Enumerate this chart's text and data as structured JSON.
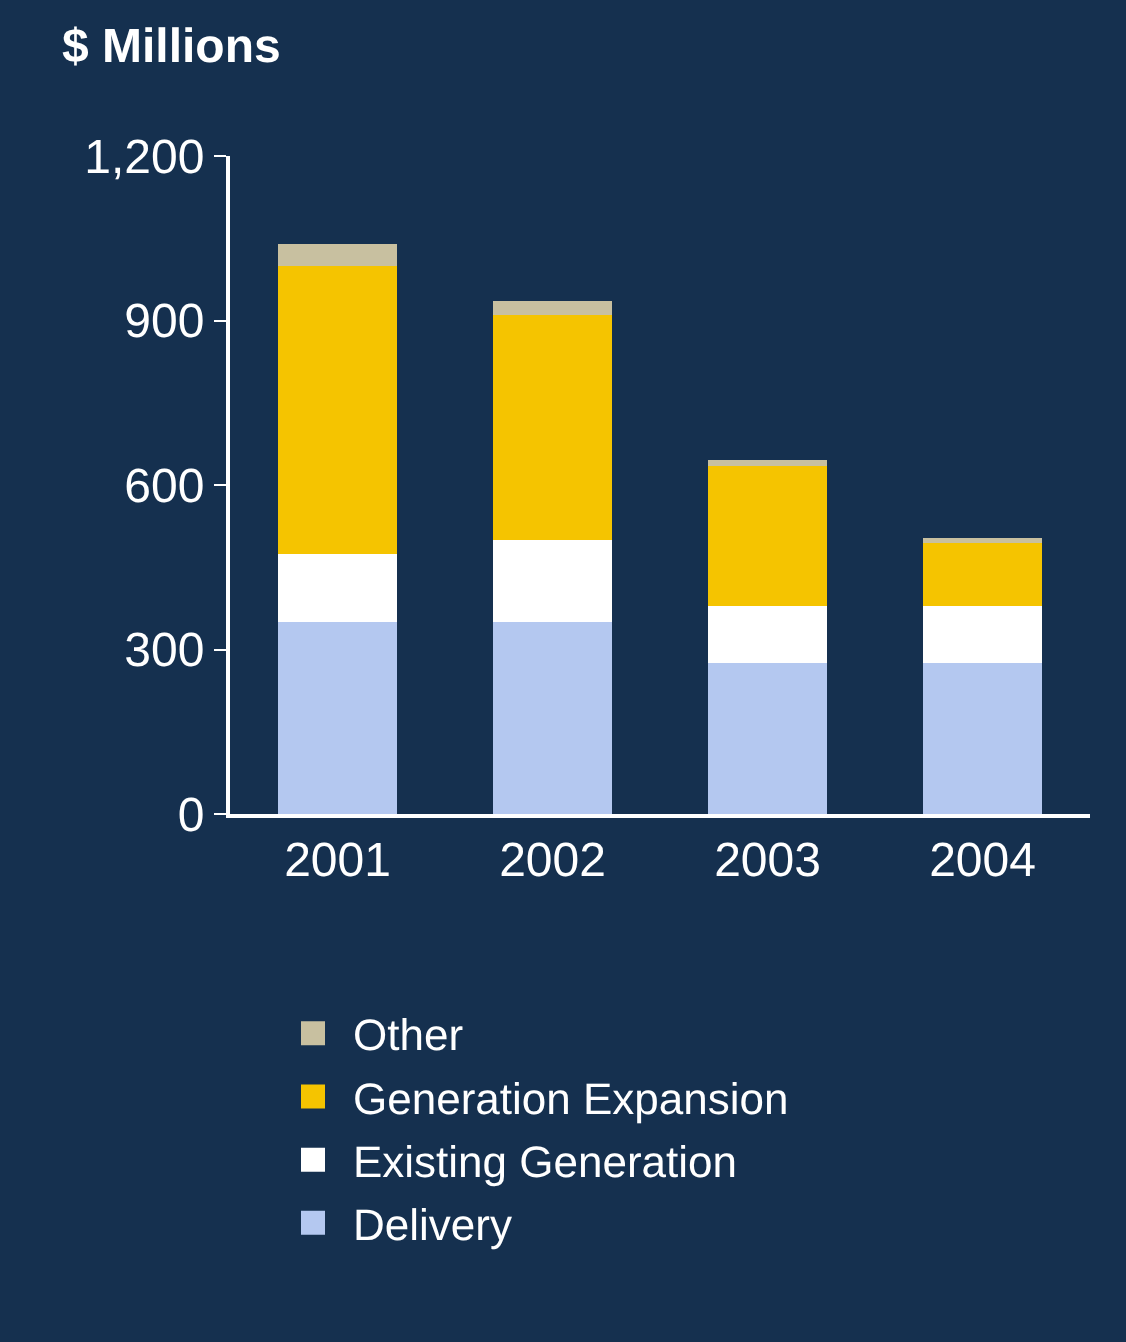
{
  "chart_data": {
    "type": "bar",
    "stacked": true,
    "ylabel": "$ Millions",
    "categories": [
      "2001",
      "2002",
      "2003",
      "2004"
    ],
    "series": [
      {
        "name": "Delivery",
        "color": "#b4c8f0",
        "values": [
          350,
          350,
          275,
          275
        ]
      },
      {
        "name": "Existing Generation",
        "color": "#ffffff",
        "values": [
          125,
          150,
          105,
          105
        ]
      },
      {
        "name": "Generation Expansion",
        "color": "#f5c400",
        "values": [
          525,
          410,
          255,
          115
        ]
      },
      {
        "name": "Other",
        "color": "#c8c0a0",
        "values": [
          40,
          25,
          10,
          8
        ]
      }
    ],
    "ylim": [
      0,
      1200
    ],
    "yticks": [
      0,
      {
        "value": 300,
        "label": "300"
      },
      {
        "value": 600,
        "label": "600"
      },
      {
        "value": 900,
        "label": "900"
      },
      {
        "value": 1200,
        "label": "1,200"
      }
    ],
    "grid": false,
    "legend": "bottom"
  }
}
